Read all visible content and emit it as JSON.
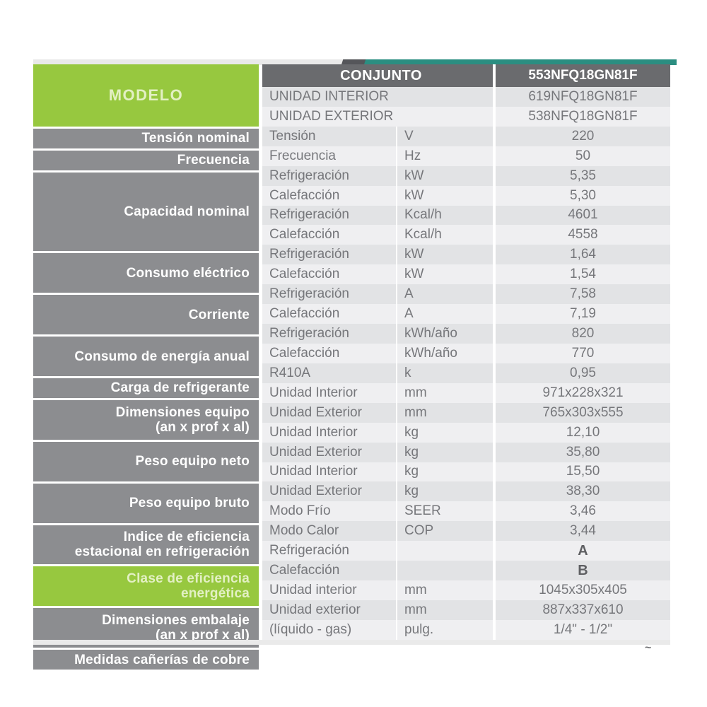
{
  "colors": {
    "accent_green": "#97c83f",
    "accent_teal": "#2b8e81",
    "header_dark_gray": "#6a6b6e",
    "row_header_gray": "#8c8d90",
    "stripe_dark": "#e2e3e5",
    "stripe_light": "#efeff1",
    "body_text": "#76777b"
  },
  "table": {
    "header": {
      "conjunto": "CONJUNTO",
      "model": "553NFQ18GN81F"
    },
    "artifact_mark": "~",
    "sections": [
      {
        "label_lines": [
          "MODELO"
        ],
        "green": true,
        "rows": [
          {
            "label": "UNIDAD INTERIOR",
            "unit": "",
            "value": "619NFQ18GN81F",
            "span": true
          },
          {
            "label": "UNIDAD EXTERIOR",
            "unit": "",
            "value": "538NFQ18GN81F",
            "span": true
          }
        ]
      },
      {
        "label_lines": [
          "Tensión nominal"
        ],
        "rows": [
          {
            "label": "Tensión",
            "unit": "V",
            "value": "220"
          }
        ]
      },
      {
        "label_lines": [
          "Frecuencia"
        ],
        "rows": [
          {
            "label": "Frecuencia",
            "unit": "Hz",
            "value": "50"
          }
        ]
      },
      {
        "label_lines": [
          "Capacidad nominal"
        ],
        "rows": [
          {
            "label": "Refrigeración",
            "unit": "kW",
            "value": "5,35"
          },
          {
            "label": "Calefacción",
            "unit": "kW",
            "value": "5,30"
          },
          {
            "label": "Refrigeración",
            "unit": "Kcal/h",
            "value": "4601"
          },
          {
            "label": "Calefacción",
            "unit": "Kcal/h",
            "value": "4558"
          }
        ]
      },
      {
        "label_lines": [
          "Consumo eléctrico"
        ],
        "rows": [
          {
            "label": "Refrigeración",
            "unit": "kW",
            "value": "1,64"
          },
          {
            "label": "Calefacción",
            "unit": "kW",
            "value": "1,54"
          }
        ]
      },
      {
        "label_lines": [
          "Corriente"
        ],
        "rows": [
          {
            "label": "Refrigeración",
            "unit": "A",
            "value": "7,58"
          },
          {
            "label": "Calefacción",
            "unit": "A",
            "value": "7,19"
          }
        ]
      },
      {
        "label_lines": [
          "Consumo de energía anual"
        ],
        "rows": [
          {
            "label": "Refrigeración",
            "unit": "kWh/año",
            "value": "820"
          },
          {
            "label": "Calefacción",
            "unit": "kWh/año",
            "value": "770"
          }
        ]
      },
      {
        "label_lines": [
          "Carga de refrigerante"
        ],
        "rows": [
          {
            "label": "R410A",
            "unit": "k",
            "value": "0,95"
          }
        ]
      },
      {
        "label_lines": [
          "Dimensiones equipo",
          "(an x prof x al)"
        ],
        "rows": [
          {
            "label": "Unidad Interior",
            "unit": "mm",
            "value": "971x228x321"
          },
          {
            "label": "Unidad Exterior",
            "unit": "mm",
            "value": "765x303x555"
          }
        ]
      },
      {
        "label_lines": [
          "Peso equipo neto"
        ],
        "rows": [
          {
            "label": "Unidad Interior",
            "unit": "kg",
            "value": "12,10"
          },
          {
            "label": "Unidad Exterior",
            "unit": "kg",
            "value": "35,80"
          }
        ]
      },
      {
        "label_lines": [
          "Peso equipo bruto"
        ],
        "rows": [
          {
            "label": "Unidad Interior",
            "unit": "kg",
            "value": "15,50"
          },
          {
            "label": "Unidad Exterior",
            "unit": "kg",
            "value": "38,30"
          }
        ]
      },
      {
        "label_lines": [
          "Indice de eficiencia",
          "estacional en refrigeración"
        ],
        "rows": [
          {
            "label": "Modo Frío",
            "unit": "SEER",
            "value": "3,46"
          },
          {
            "label": "Modo Calor",
            "unit": "COP",
            "value": "3,44"
          }
        ]
      },
      {
        "label_lines": [
          "Clase de eficiencia",
          "energética"
        ],
        "green": true,
        "rows": [
          {
            "label": "Refrigeración",
            "unit": "",
            "value": "A",
            "bold": true
          },
          {
            "label": "Calefacción",
            "unit": "",
            "value": "B",
            "bold": true
          }
        ]
      },
      {
        "label_lines": [
          "Dimensiones embalaje",
          "(an x prof x al)"
        ],
        "rows": [
          {
            "label": "Unidad interior",
            "unit": "mm",
            "value": "1045x305x405"
          },
          {
            "label": "Unidad exterior",
            "unit": "mm",
            "value": "887x337x610"
          }
        ]
      },
      {
        "label_lines": [
          "Medidas cañerías de cobre"
        ],
        "rows": [
          {
            "label": "(líquido - gas)",
            "unit": "pulg.",
            "value": "1/4\" - 1/2\""
          }
        ]
      }
    ]
  }
}
